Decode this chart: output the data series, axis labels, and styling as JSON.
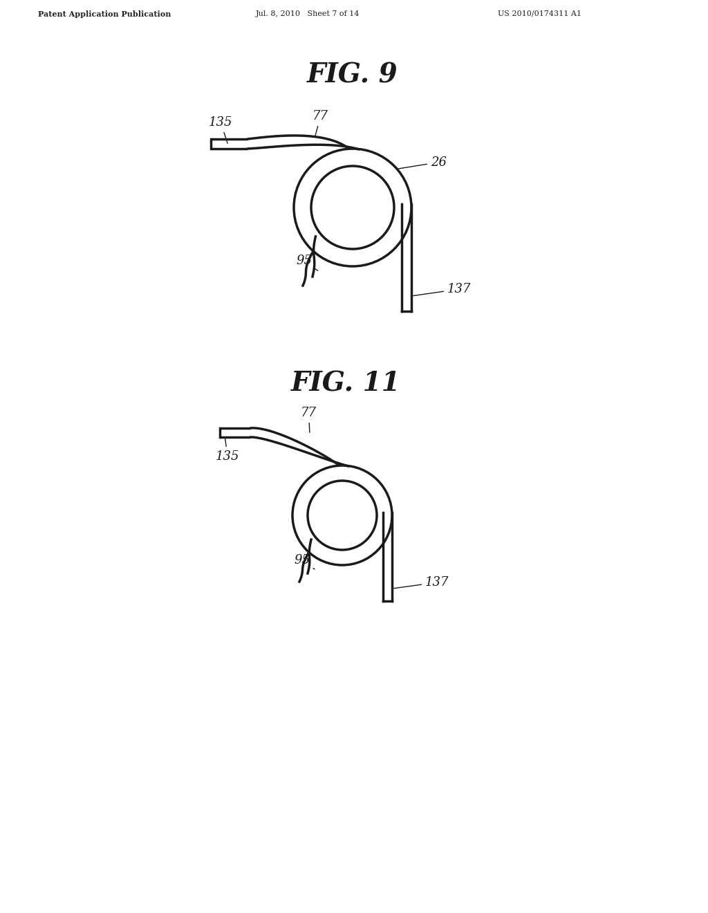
{
  "background_color": "#ffffff",
  "fig_width": 10.24,
  "fig_height": 13.2,
  "header_left": "Patent Application Publication",
  "header_mid": "Jul. 8, 2010   Sheet 7 of 14",
  "header_right": "US 2010/0174311 A1",
  "fig9_title": "FIG. 9",
  "fig11_title": "FIG. 11",
  "line_color": "#1a1a1a",
  "line_width": 2.5,
  "label_fontsize": 13,
  "title_fontsize": 28
}
